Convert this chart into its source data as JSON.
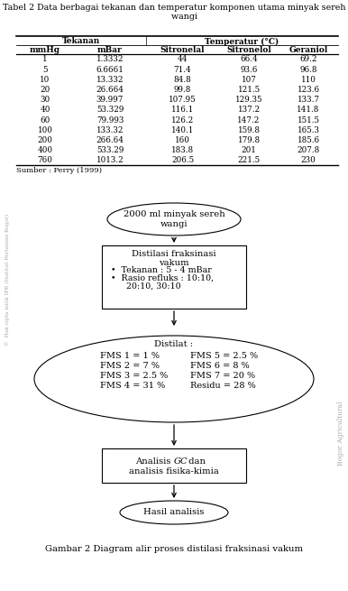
{
  "title_table": "Tabel 2 Data berbagai tekanan dan temperatur komponen utama minyak sereh\n        wangi",
  "table_sub_headers": [
    "mmHg",
    "mBar",
    "Sitronelal",
    "Sitronelol",
    "Geraniol"
  ],
  "table_data": [
    [
      "1",
      "1.3332",
      "44",
      "66.4",
      "69.2"
    ],
    [
      "5",
      "6.6661",
      "71.4",
      "93.6",
      "96.8"
    ],
    [
      "10",
      "13.332",
      "84.8",
      "107",
      "110"
    ],
    [
      "20",
      "26.664",
      "99.8",
      "121.5",
      "123.6"
    ],
    [
      "30",
      "39.997",
      "107.95",
      "129.35",
      "133.7"
    ],
    [
      "40",
      "53.329",
      "116.1",
      "137.2",
      "141.8"
    ],
    [
      "60",
      "79.993",
      "126.2",
      "147.2",
      "151.5"
    ],
    [
      "100",
      "133.32",
      "140.1",
      "159.8",
      "165.3"
    ],
    [
      "200",
      "266.64",
      "160",
      "179.8",
      "185.6"
    ],
    [
      "400",
      "533.29",
      "183.8",
      "201",
      "207.8"
    ],
    [
      "760",
      "1013.2",
      "206.5",
      "221.5",
      "230"
    ]
  ],
  "source_text": "Sumber : Perry (1999)",
  "node1_text": "2000 ml minyak sereh\nwangi",
  "node2_title": "Distilasi fraksinasi\nvakum",
  "node2_b1": "•  Tekanan : 5 - 4 mBar",
  "node2_b2": "•  Rasio refluks : 10:10,",
  "node2_b3": "   20:10, 30:10",
  "node3_label": "Distilat :",
  "node3_left": [
    "FMS 1 = 1 %",
    "FMS 2 = 7 %",
    "FMS 3 = 2.5 %",
    "FMS 4 = 31 %"
  ],
  "node3_right": [
    "FMS 5 = 2.5 %",
    "FMS 6 = 8 %",
    "FMS 7 = 20 %",
    "Residu = 28 %"
  ],
  "node4_line1a": "Analisis ",
  "node4_line1b": "GC",
  "node4_line1c": " dan",
  "node4_line2": "analisis fisika-kimia",
  "node5_text": "Hasil analisis",
  "caption": "Gambar 2 Diagram alir proses distilasi fraksinasi vakum",
  "wm1": "©  Hak cipta milik IPB (Institut Pertanian Bogor)",
  "wm2": "Bogor Agricultural"
}
